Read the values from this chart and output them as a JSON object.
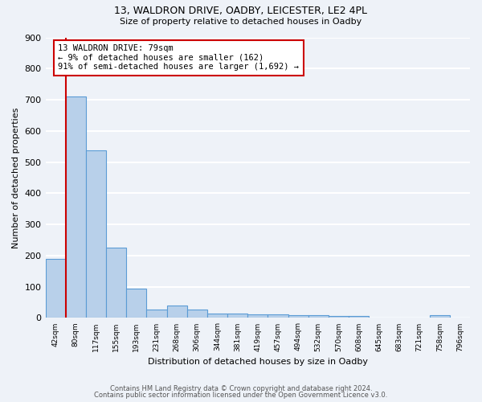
{
  "title1": "13, WALDRON DRIVE, OADBY, LEICESTER, LE2 4PL",
  "title2": "Size of property relative to detached houses in Oadby",
  "xlabel": "Distribution of detached houses by size in Oadby",
  "ylabel": "Number of detached properties",
  "bin_labels": [
    "42sqm",
    "80sqm",
    "117sqm",
    "155sqm",
    "193sqm",
    "231sqm",
    "268sqm",
    "306sqm",
    "344sqm",
    "381sqm",
    "419sqm",
    "457sqm",
    "494sqm",
    "532sqm",
    "570sqm",
    "608sqm",
    "645sqm",
    "683sqm",
    "721sqm",
    "758sqm",
    "796sqm"
  ],
  "bar_values": [
    190,
    710,
    538,
    225,
    93,
    28,
    40,
    27,
    13,
    13,
    12,
    12,
    10,
    8,
    7,
    5,
    0,
    0,
    0,
    8,
    0
  ],
  "bar_color": "#b8d0ea",
  "bar_edge_color": "#5b9bd5",
  "property_line_x": 1.0,
  "annotation_text": "13 WALDRON DRIVE: 79sqm\n← 9% of detached houses are smaller (162)\n91% of semi-detached houses are larger (1,692) →",
  "annotation_box_color": "#ffffff",
  "annotation_box_edge": "#cc0000",
  "red_line_color": "#cc0000",
  "ylim": [
    0,
    900
  ],
  "yticks": [
    0,
    100,
    200,
    300,
    400,
    500,
    600,
    700,
    800,
    900
  ],
  "footer1": "Contains HM Land Registry data © Crown copyright and database right 2024.",
  "footer2": "Contains public sector information licensed under the Open Government Licence v3.0.",
  "bg_color": "#eef2f8",
  "grid_color": "#ffffff"
}
